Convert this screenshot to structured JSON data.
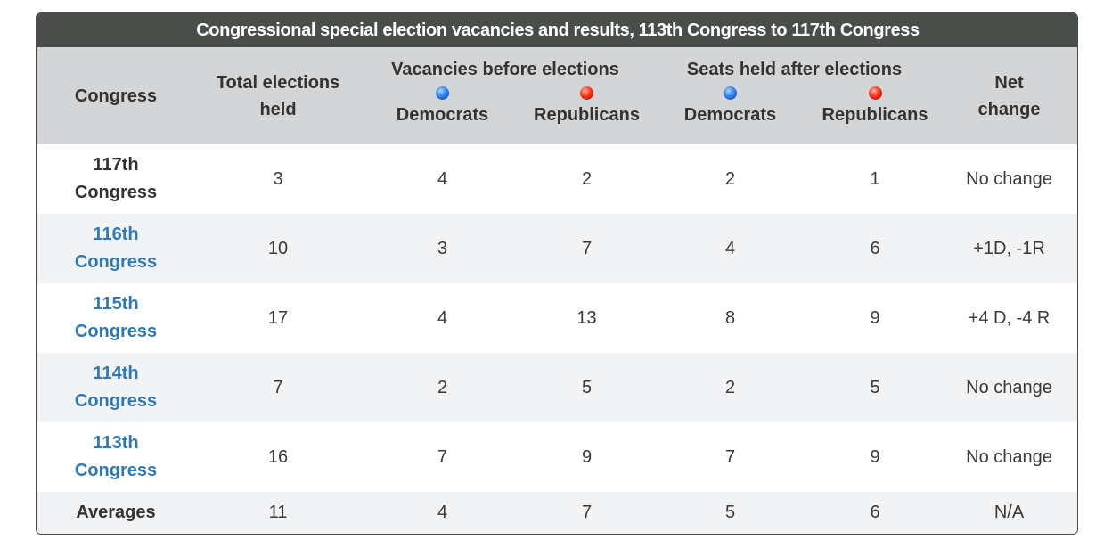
{
  "title": "Congressional special election vacancies and results, 113th Congress to 117th Congress",
  "headers": {
    "congress": "Congress",
    "total_line1": "Total elections",
    "total_line2": "held",
    "vacancies_group": "Vacancies before elections",
    "seats_group": "Seats held after elections",
    "democrats": "Democrats",
    "republicans": "Republicans",
    "net_line1": "Net",
    "net_line2": "change"
  },
  "party_colors": {
    "democrats": "#1f6fe0",
    "republicans": "#e61a0a"
  },
  "rows": [
    {
      "congress_line1": "117th",
      "congress_line2": "Congress",
      "is_link": false,
      "total": "3",
      "vac_dem": "4",
      "vac_rep": "2",
      "seat_dem": "2",
      "seat_rep": "1",
      "net": "No change"
    },
    {
      "congress_line1": "116th",
      "congress_line2": "Congress",
      "is_link": true,
      "total": "10",
      "vac_dem": "3",
      "vac_rep": "7",
      "seat_dem": "4",
      "seat_rep": "6",
      "net": "+1D, -1R"
    },
    {
      "congress_line1": "115th",
      "congress_line2": "Congress",
      "is_link": true,
      "total": "17",
      "vac_dem": "4",
      "vac_rep": "13",
      "seat_dem": "8",
      "seat_rep": "9",
      "net": "+4 D, -4 R"
    },
    {
      "congress_line1": "114th",
      "congress_line2": "Congress",
      "is_link": true,
      "total": "7",
      "vac_dem": "2",
      "vac_rep": "5",
      "seat_dem": "2",
      "seat_rep": "5",
      "net": "No change"
    },
    {
      "congress_line1": "113th",
      "congress_line2": "Congress",
      "is_link": true,
      "total": "16",
      "vac_dem": "7",
      "vac_rep": "9",
      "seat_dem": "7",
      "seat_rep": "9",
      "net": "No change"
    }
  ],
  "averages": {
    "label": "Averages",
    "total": "11",
    "vac_dem": "4",
    "vac_rep": "7",
    "seat_dem": "5",
    "seat_rep": "6",
    "net": "N/A"
  }
}
